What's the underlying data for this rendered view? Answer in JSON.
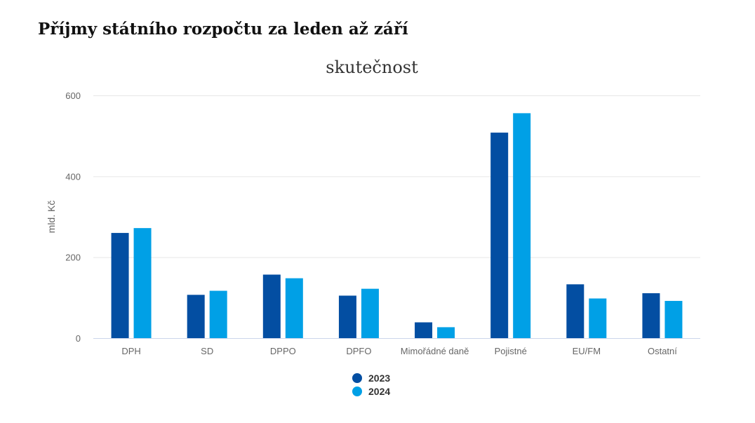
{
  "page": {
    "title": "Příjmy státního rozpočtu za leden až září"
  },
  "chart_data": {
    "type": "bar",
    "title": "Příjmy státního rozpočtu za leden až září",
    "subtitle": "skutečnost",
    "xlabel": "",
    "ylabel": "mld. Kč",
    "ylim": [
      0,
      600
    ],
    "yticks": [
      0,
      200,
      400,
      600
    ],
    "grid": true,
    "legend_position": "bottom",
    "categories": [
      "DPH",
      "SD",
      "DPPO",
      "DPFO",
      "Mimořádné daně",
      "Pojistné",
      "EU/FM",
      "Ostatní"
    ],
    "series": [
      {
        "name": "2023",
        "color": "#034EA2",
        "values": [
          260,
          107,
          157,
          105,
          39,
          508,
          133,
          111
        ]
      },
      {
        "name": "2024",
        "color": "#00A0E6",
        "values": [
          272,
          117,
          148,
          122,
          27,
          556,
          98,
          92
        ]
      }
    ]
  }
}
